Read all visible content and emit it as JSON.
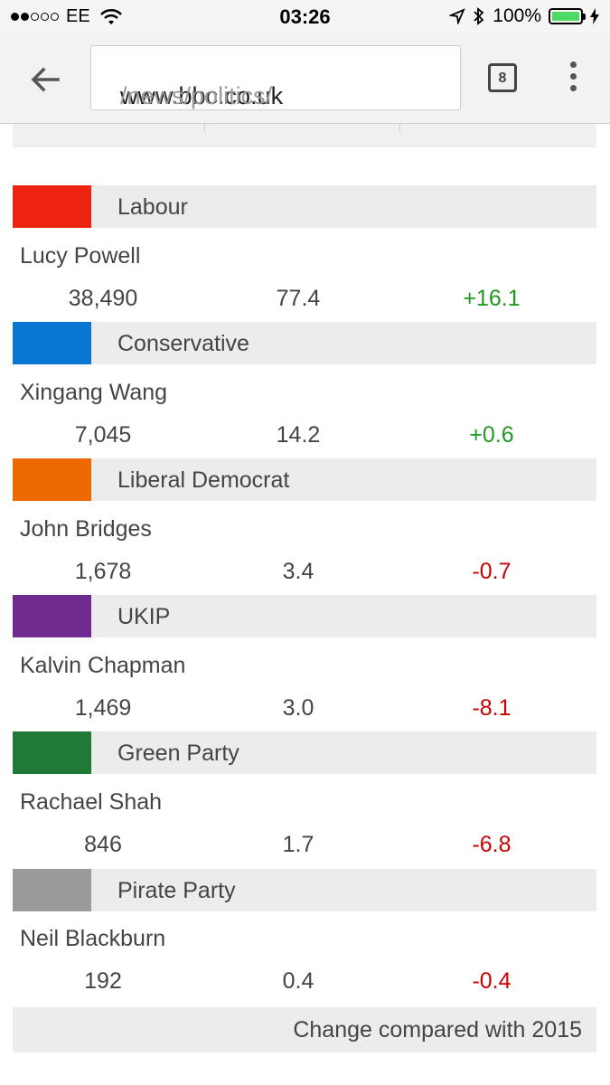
{
  "status_bar": {
    "carrier": "EE",
    "time": "03:26",
    "battery_text": "100%",
    "battery_level": 1.0,
    "battery_color": "#4cd964"
  },
  "browser": {
    "url_host": "www.bbc.co.uk",
    "url_path": "/news/politics/",
    "tab_count": "8"
  },
  "results": [
    {
      "party": "Labour",
      "color": "#ee2211",
      "candidate": "Lucy Powell",
      "votes": "38,490",
      "share": "77.4",
      "change": "+16.1"
    },
    {
      "party": "Conservative",
      "color": "#0a77d4",
      "candidate": "Xingang Wang",
      "votes": "7,045",
      "share": "14.2",
      "change": "+0.6"
    },
    {
      "party": "Liberal Democrat",
      "color": "#ee6a00",
      "candidate": "John Bridges",
      "votes": "1,678",
      "share": "3.4",
      "change": "-0.7"
    },
    {
      "party": "UKIP",
      "color": "#6f2b8f",
      "candidate": "Kalvin Chapman",
      "votes": "1,469",
      "share": "3.0",
      "change": "-8.1"
    },
    {
      "party": "Green Party",
      "color": "#207a37",
      "candidate": "Rachael Shah",
      "votes": "846",
      "share": "1.7",
      "change": "-6.8"
    },
    {
      "party": "Pirate Party",
      "color": "#9a9a9a",
      "candidate": "Neil Blackburn",
      "votes": "192",
      "share": "0.4",
      "change": "-0.4"
    }
  ],
  "footer_note": "Change compared with 2015"
}
